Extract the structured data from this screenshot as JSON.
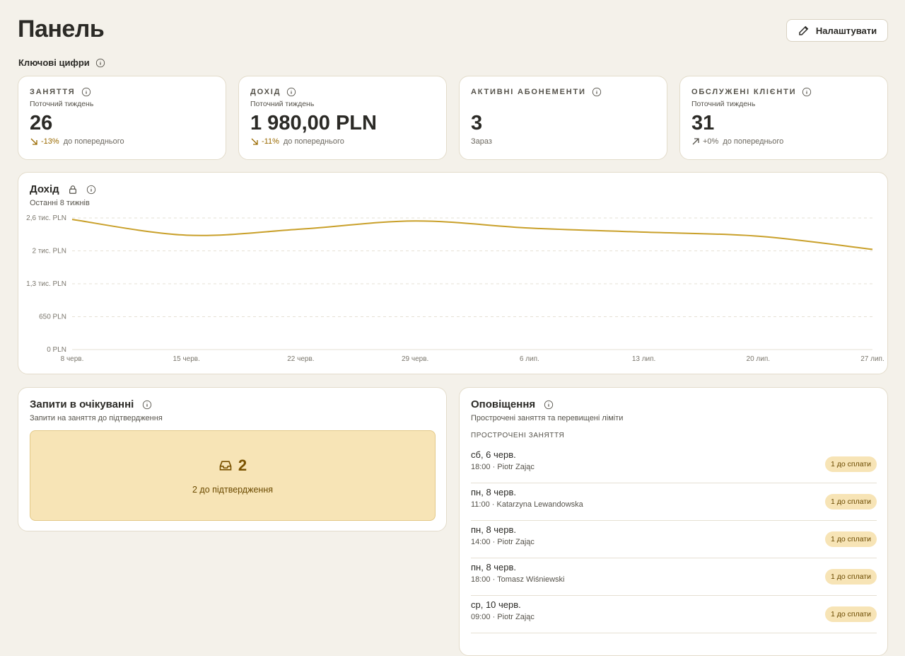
{
  "header": {
    "title": "Панель",
    "button": "Налаштувати"
  },
  "section_title": "Ключові цифри",
  "kpis": [
    {
      "label": "ЗАНЯТТЯ",
      "period": "Поточний тиждень",
      "value": "26",
      "change": "-13%",
      "change_text": "до попереднього"
    },
    {
      "label": "ДОХІД",
      "period": "Поточний тиждень",
      "value": "1 980,00 PLN",
      "change": "-11%",
      "change_text": "до попереднього"
    },
    {
      "label": "АКТИВНІ АБОНЕМЕНТИ",
      "value": "3",
      "note": "Зараз"
    },
    {
      "label": "ОБСЛУЖЕНІ КЛІЄНТИ",
      "period": "Поточний тиждень",
      "value": "31",
      "change": "+0%",
      "change_text": "до попереднього"
    }
  ],
  "chart_data": {
    "type": "line",
    "title": "Дохід",
    "subtitle": "Останні 8 тижнів",
    "x": [
      "8 черв.",
      "15 черв.",
      "22 черв.",
      "29 черв.",
      "6 лип.",
      "13 лип.",
      "20 лип.",
      "27 лип."
    ],
    "values": [
      2570,
      2260,
      2380,
      2540,
      2400,
      2320,
      2240,
      1980
    ],
    "color": "#c9a02a",
    "ylim": [
      0,
      2600
    ],
    "yticks": [
      {
        "value": 0,
        "label": "0 PLN"
      },
      {
        "value": 650,
        "label": "650 PLN"
      },
      {
        "value": 1300,
        "label": "1,3 тис. PLN"
      },
      {
        "value": 1950,
        "label": "2 тис. PLN"
      },
      {
        "value": 2600,
        "label": "2,6 тис. PLN"
      }
    ],
    "grid": true
  },
  "pending": {
    "title": "Запити в очікуванні",
    "subtitle": "Запити на заняття до підтвердження",
    "count": "2",
    "text": "2 до підтвердження"
  },
  "alerts": {
    "title": "Оповіщення",
    "subtitle": "Прострочені заняття та перевищені ліміти",
    "section": "ПРОСТРОЧЕНІ ЗАНЯТТЯ",
    "items": [
      {
        "date": "сб, 6 черв.",
        "detail": "18:00 · Piotr Zając",
        "badge": "1 до сплати"
      },
      {
        "date": "пн, 8 черв.",
        "detail": "11:00 · Katarzyna Lewandowska",
        "badge": "1 до сплати"
      },
      {
        "date": "пн, 8 черв.",
        "detail": "14:00 · Piotr Zając",
        "badge": "1 до сплати"
      },
      {
        "date": "пн, 8 черв.",
        "detail": "18:00 · Tomasz Wiśniewski",
        "badge": "1 до сплати"
      },
      {
        "date": "ср, 10 черв.",
        "detail": "09:00 · Piotr Zając",
        "badge": "1 до сплати"
      }
    ]
  }
}
